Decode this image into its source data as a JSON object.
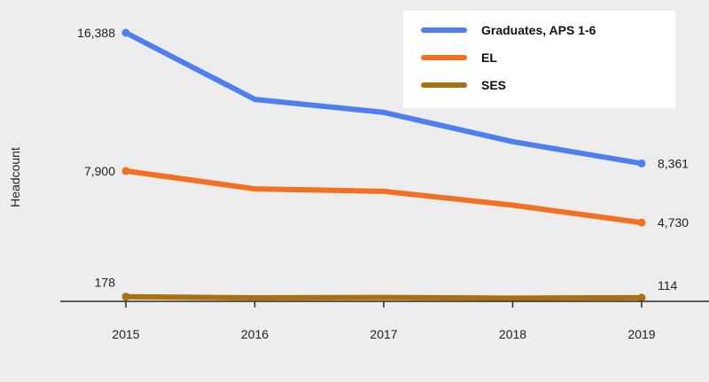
{
  "chart_data": {
    "type": "line",
    "title": "",
    "xlabel": "",
    "ylabel": "Headcount",
    "categories": [
      "2015",
      "2016",
      "2017",
      "2018",
      "2019"
    ],
    "ylim": [
      0,
      17000
    ],
    "grid": false,
    "legend_position": "top-right",
    "series": [
      {
        "name": "Graduates, APS 1-6",
        "color": "#4f7ef0",
        "values": [
          16388,
          12300,
          11500,
          9700,
          8361
        ],
        "labels": {
          "first": "16,388",
          "last": "8,361"
        }
      },
      {
        "name": "EL",
        "color": "#f36f21",
        "values": [
          7900,
          6800,
          6650,
          5800,
          4730
        ],
        "labels": {
          "first": "7,900",
          "last": "4,730"
        }
      },
      {
        "name": "SES",
        "color": "#a8700f",
        "values": [
          178,
          110,
          130,
          90,
          114
        ],
        "labels": {
          "first": "178",
          "last": "114"
        }
      }
    ]
  }
}
